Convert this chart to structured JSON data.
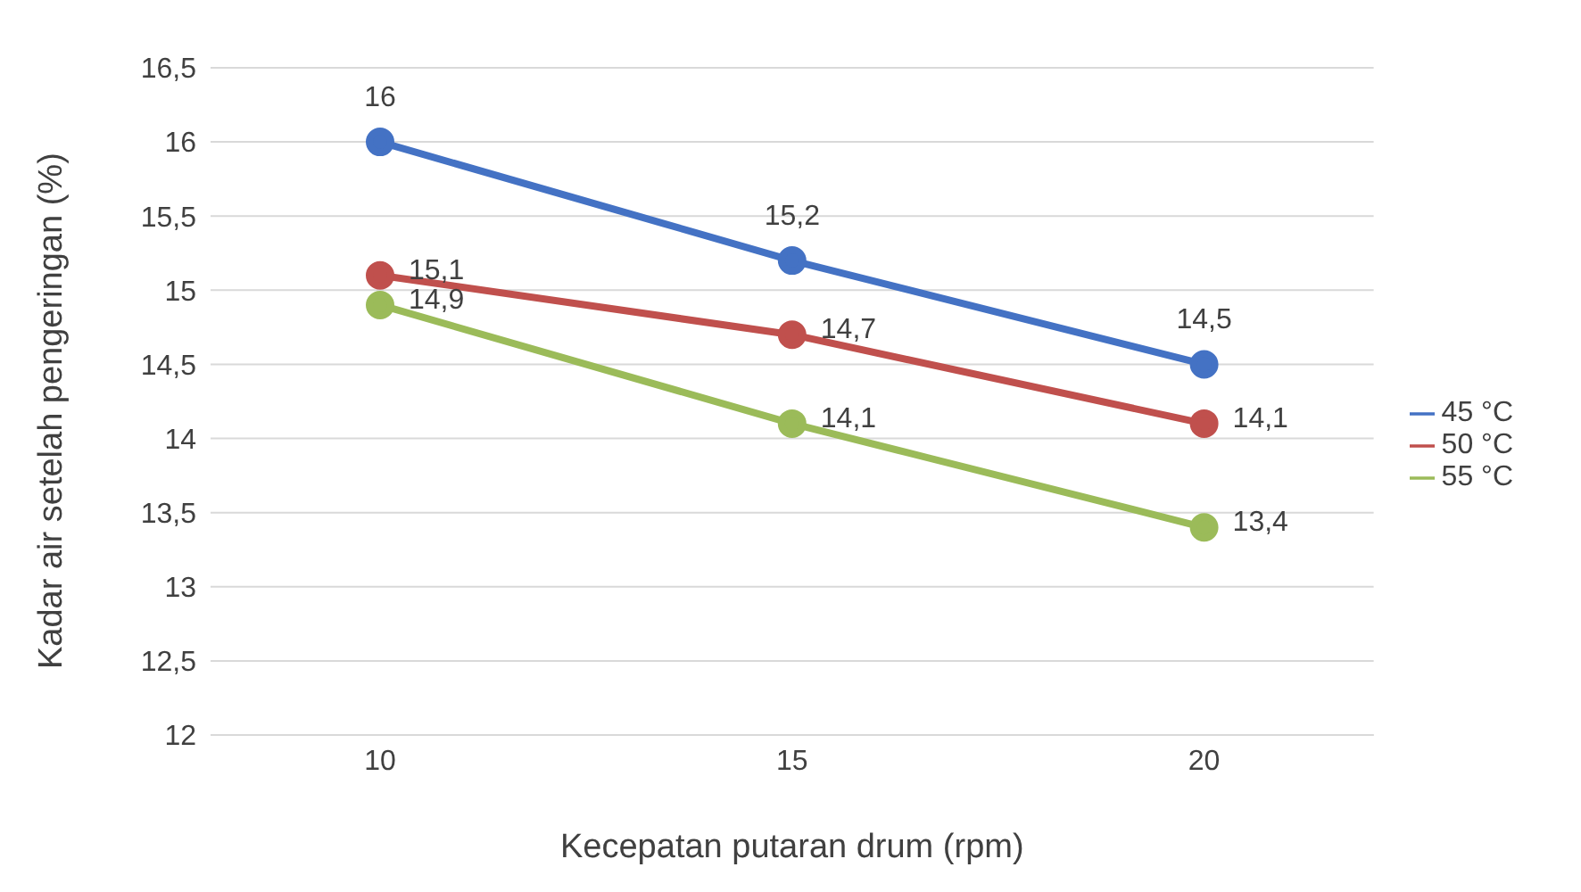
{
  "chart_data": {
    "type": "line",
    "xlabel": "Kecepatan putaran drum (rpm)",
    "ylabel": "Kadar air setelah pengeringan (%)",
    "categories": [
      "10",
      "15",
      "20"
    ],
    "series": [
      {
        "name": "45 °C",
        "color": "#4472c4",
        "values": [
          16,
          15.2,
          14.5
        ],
        "value_labels": [
          "16",
          "15,2",
          "14,5"
        ]
      },
      {
        "name": "50 °C",
        "color": "#c0504d",
        "values": [
          15.1,
          14.7,
          14.1
        ],
        "value_labels": [
          "15,1",
          "14,7",
          "14,1"
        ]
      },
      {
        "name": "55 °C",
        "color": "#9bbb59",
        "values": [
          14.9,
          14.1,
          13.4
        ],
        "value_labels": [
          "14,9",
          "14,1",
          "13,4"
        ]
      }
    ],
    "ylim": [
      12,
      16.5
    ],
    "yticks": [
      {
        "value": 12,
        "label": "12"
      },
      {
        "value": 12.5,
        "label": "12,5"
      },
      {
        "value": 13,
        "label": "13"
      },
      {
        "value": 13.5,
        "label": "13,5"
      },
      {
        "value": 14,
        "label": "14"
      },
      {
        "value": 14.5,
        "label": "14,5"
      },
      {
        "value": 15,
        "label": "15"
      },
      {
        "value": 15.5,
        "label": "15,5"
      },
      {
        "value": 16,
        "label": "16"
      },
      {
        "value": 16.5,
        "label": "16,5"
      }
    ],
    "grid": "y",
    "legend": "right",
    "marker": "circle",
    "line_style": "solid"
  }
}
